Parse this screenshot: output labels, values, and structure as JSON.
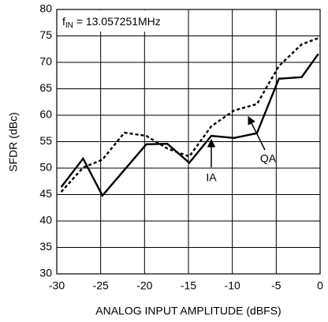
{
  "chart_data": {
    "type": "line",
    "annotation": {
      "label": "f",
      "subscript": "IN",
      "text": " = 13.057251MHz"
    },
    "x_label": "ANALOG INPUT AMPLITUDE (dBFS)",
    "y_label": "SFDR (dBc)",
    "xlim": [
      -30,
      0
    ],
    "xticks": [
      -30,
      -25,
      -20,
      -15,
      -10,
      -5,
      0
    ],
    "ylim": [
      30,
      80
    ],
    "yticks": [
      30,
      35,
      40,
      45,
      50,
      55,
      60,
      65,
      70,
      75,
      80
    ],
    "grid": true,
    "series": [
      {
        "name": "IA",
        "color": "#000000",
        "dash": false,
        "x": [
          -29.5,
          -27.0,
          -24.8,
          -19.8,
          -17.4,
          -14.9,
          -12.4,
          -9.8,
          -7.2,
          -4.7,
          -2.1,
          -0.2
        ],
        "values": [
          46.4,
          51.8,
          44.8,
          54.5,
          54.6,
          51.0,
          56.1,
          55.7,
          56.6,
          66.9,
          67.2,
          71.6
        ]
      },
      {
        "name": "QA",
        "color": "#000000",
        "dash": true,
        "x": [
          -29.5,
          -27.0,
          -24.8,
          -22.3,
          -19.8,
          -17.4,
          -14.9,
          -12.4,
          -9.8,
          -7.2,
          -4.7,
          -2.1,
          -0.2
        ],
        "values": [
          45.5,
          50.1,
          51.6,
          56.7,
          56.1,
          53.7,
          52.2,
          57.9,
          60.9,
          62.1,
          69.3,
          73.4,
          74.6
        ]
      }
    ]
  }
}
